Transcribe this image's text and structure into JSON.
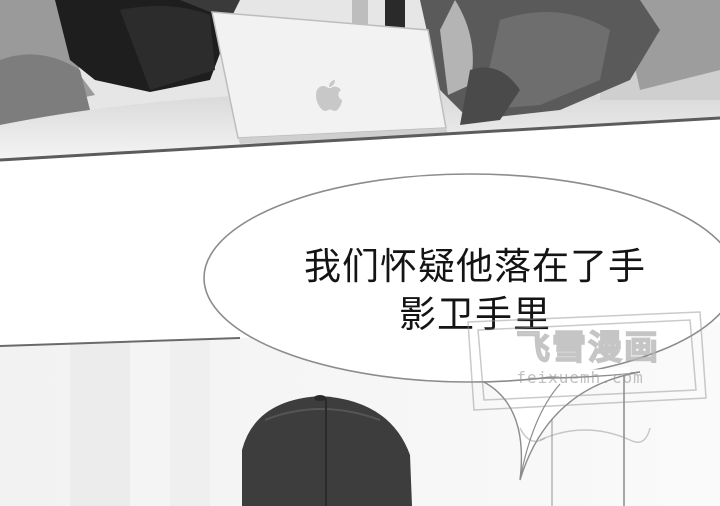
{
  "speech_bubble": {
    "line1": "我们怀疑他落在了手",
    "line2": "影卫手里"
  },
  "watermark": {
    "title": "飞雪漫画",
    "url": "feixuemh.com"
  }
}
